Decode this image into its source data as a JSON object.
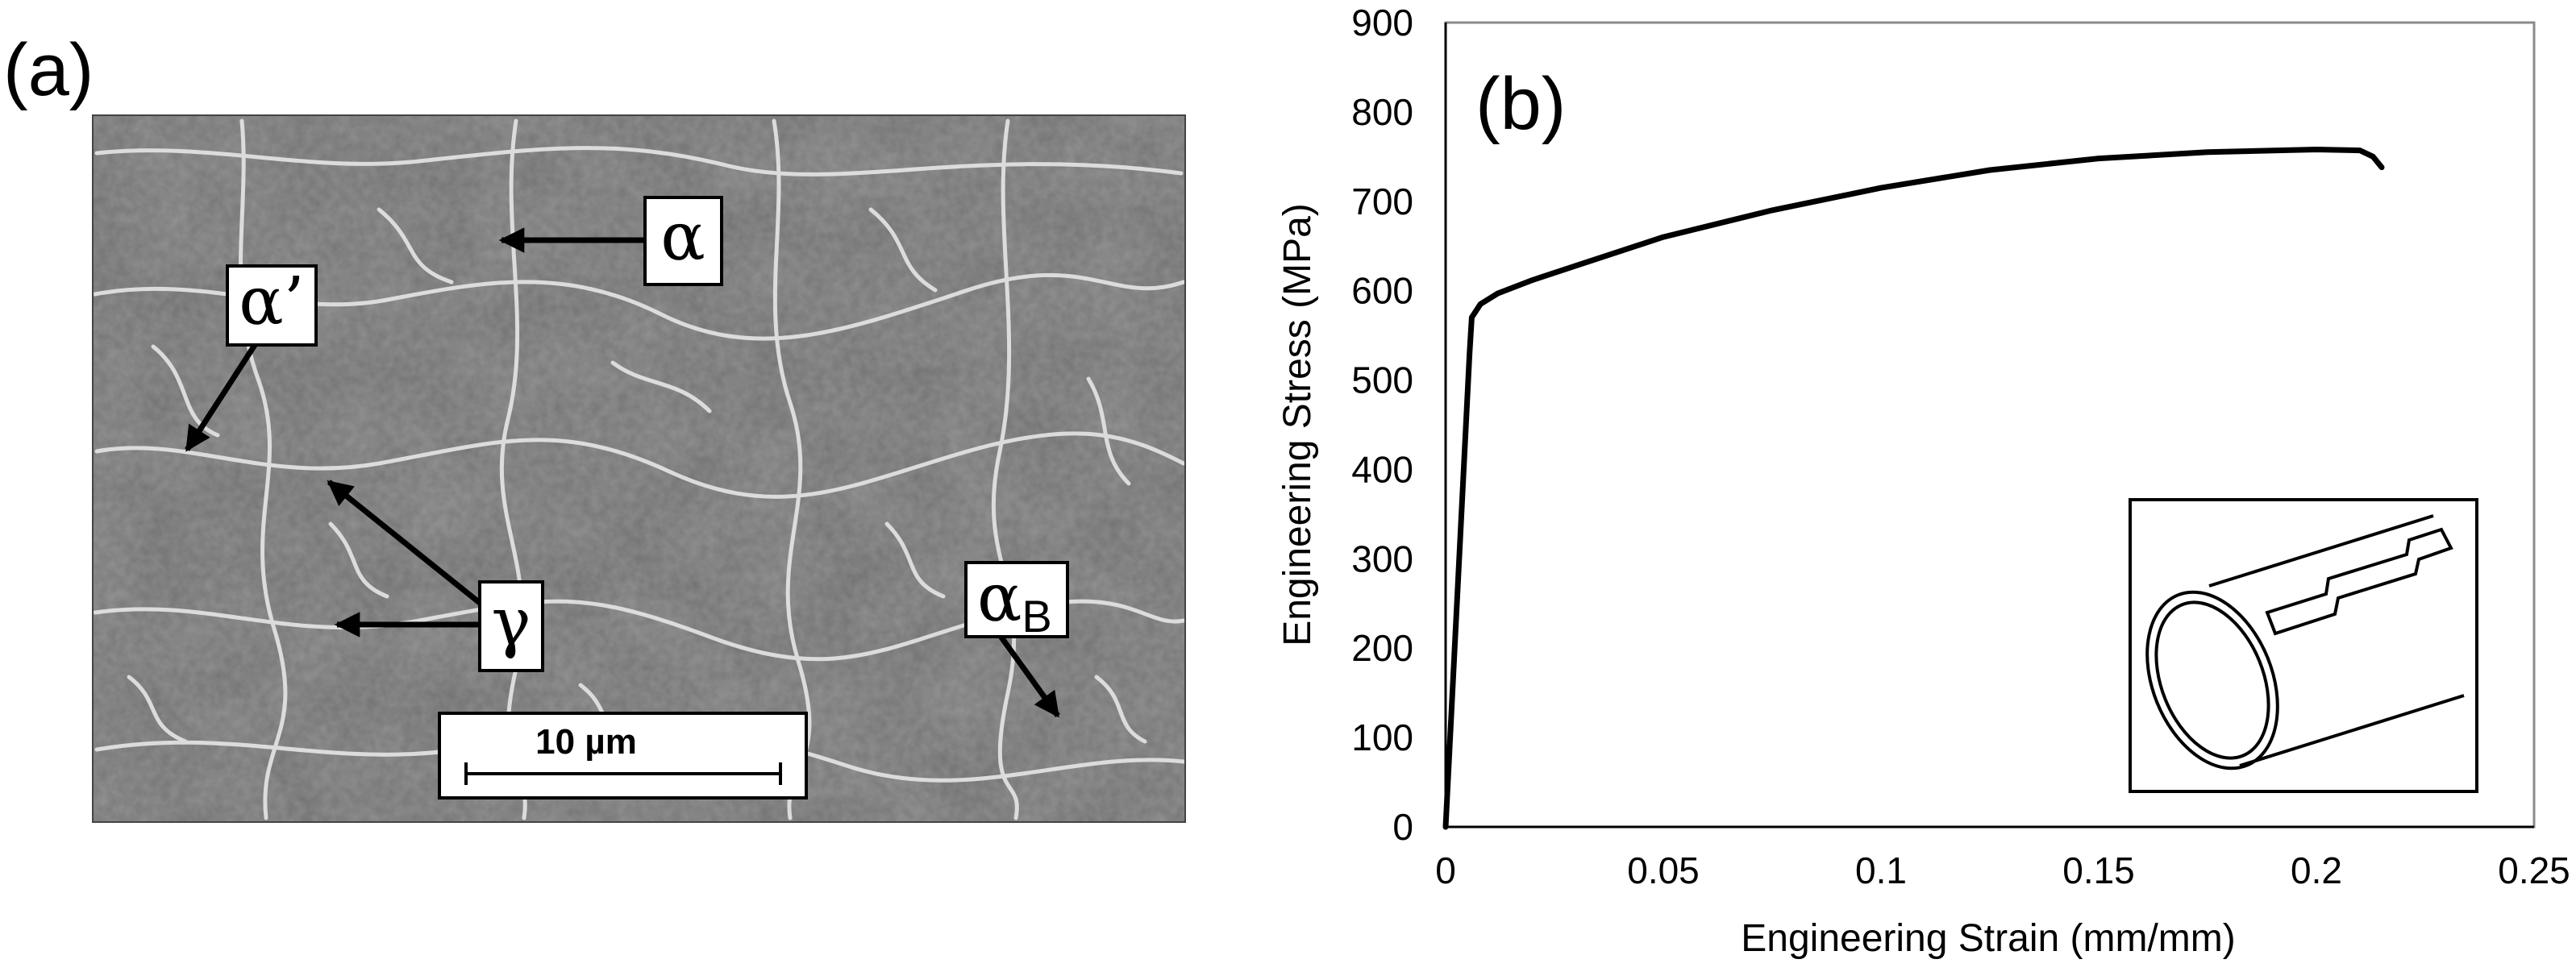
{
  "panel_a": {
    "label": "(a)",
    "phase_labels": {
      "alpha": "α",
      "alpha_prime": "α’",
      "gamma": "γ",
      "alpha_b": "α",
      "alpha_b_sub": "B"
    },
    "scale_bar": "10 µm"
  },
  "panel_b": {
    "label": "(b)"
  },
  "chart_data": {
    "type": "line",
    "title": "",
    "xlabel": "Engineering Strain (mm/mm)",
    "ylabel": "Engineering Stress (MPa)",
    "xlim": [
      0,
      0.25
    ],
    "ylim": [
      0,
      900
    ],
    "xticks": [
      0,
      0.05,
      0.1,
      0.15,
      0.2,
      0.25
    ],
    "yticks": [
      0,
      100,
      200,
      300,
      400,
      500,
      600,
      700,
      800,
      900
    ],
    "xtick_labels": [
      "0",
      "0.05",
      "0.1",
      "0.15",
      "0.2",
      "0.25"
    ],
    "ytick_labels": [
      "0",
      "100",
      "200",
      "300",
      "400",
      "500",
      "600",
      "700",
      "800",
      "900"
    ],
    "grid": false,
    "legend": "none",
    "series": [
      {
        "x": [
          0,
          0.0055,
          0.006,
          0.008,
          0.012,
          0.02,
          0.03,
          0.05,
          0.075,
          0.1,
          0.125,
          0.15,
          0.175,
          0.2,
          0.21,
          0.213,
          0.215
        ],
        "y": [
          0,
          530,
          570,
          585,
          597,
          612,
          628,
          660,
          690,
          715,
          735,
          748,
          755,
          758,
          757,
          750,
          738
        ]
      }
    ],
    "inset": "tube-specimen-sketch"
  }
}
